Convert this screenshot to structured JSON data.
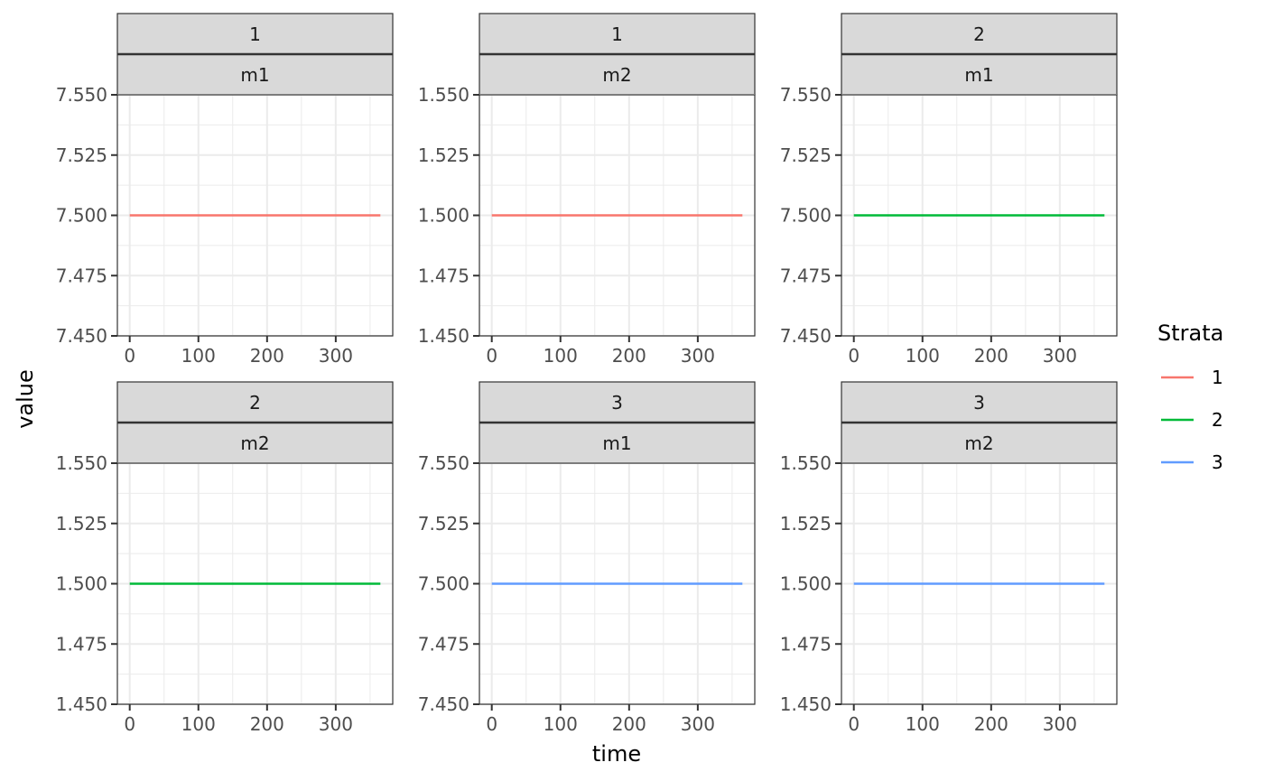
{
  "chart_data": {
    "type": "line",
    "xlabel": "time",
    "ylabel": "value",
    "legend": {
      "title": "Strata",
      "placement": "right",
      "entries": [
        {
          "label": "1",
          "color": "#F8766D"
        },
        {
          "label": "2",
          "color": "#00BA38"
        },
        {
          "label": "3",
          "color": "#619CFF"
        }
      ]
    },
    "grid": true,
    "panels": [
      {
        "strip_top": "1",
        "strip_bottom": "m1",
        "strata": "1",
        "xlim": [
          -18,
          383
        ],
        "xticks": [
          "0",
          "100",
          "200",
          "300"
        ],
        "ylim": [
          7.45,
          7.55
        ],
        "yticks": [
          "7.450",
          "7.475",
          "7.500",
          "7.525",
          "7.550"
        ],
        "x": [
          0,
          365
        ],
        "y": [
          7.5,
          7.5
        ]
      },
      {
        "strip_top": "1",
        "strip_bottom": "m2",
        "strata": "1",
        "xlim": [
          -18,
          383
        ],
        "xticks": [
          "0",
          "100",
          "200",
          "300"
        ],
        "ylim": [
          1.45,
          1.55
        ],
        "yticks": [
          "1.450",
          "1.475",
          "1.500",
          "1.525",
          "1.550"
        ],
        "x": [
          0,
          365
        ],
        "y": [
          1.5,
          1.5
        ]
      },
      {
        "strip_top": "2",
        "strip_bottom": "m1",
        "strata": "2",
        "xlim": [
          -18,
          383
        ],
        "xticks": [
          "0",
          "100",
          "200",
          "300"
        ],
        "ylim": [
          7.45,
          7.55
        ],
        "yticks": [
          "7.450",
          "7.475",
          "7.500",
          "7.525",
          "7.550"
        ],
        "x": [
          0,
          365
        ],
        "y": [
          7.5,
          7.5
        ]
      },
      {
        "strip_top": "2",
        "strip_bottom": "m2",
        "strata": "2",
        "xlim": [
          -18,
          383
        ],
        "xticks": [
          "0",
          "100",
          "200",
          "300"
        ],
        "ylim": [
          1.45,
          1.55
        ],
        "yticks": [
          "1.450",
          "1.475",
          "1.500",
          "1.525",
          "1.550"
        ],
        "x": [
          0,
          365
        ],
        "y": [
          1.5,
          1.5
        ]
      },
      {
        "strip_top": "3",
        "strip_bottom": "m1",
        "strata": "3",
        "xlim": [
          -18,
          383
        ],
        "xticks": [
          "0",
          "100",
          "200",
          "300"
        ],
        "ylim": [
          7.45,
          7.55
        ],
        "yticks": [
          "7.450",
          "7.475",
          "7.500",
          "7.525",
          "7.550"
        ],
        "x": [
          0,
          365
        ],
        "y": [
          7.5,
          7.5
        ]
      },
      {
        "strip_top": "3",
        "strip_bottom": "m2",
        "strata": "3",
        "xlim": [
          -18,
          383
        ],
        "xticks": [
          "0",
          "100",
          "200",
          "300"
        ],
        "ylim": [
          1.45,
          1.55
        ],
        "yticks": [
          "1.450",
          "1.475",
          "1.500",
          "1.525",
          "1.550"
        ],
        "x": [
          0,
          365
        ],
        "y": [
          1.5,
          1.5
        ]
      }
    ]
  }
}
